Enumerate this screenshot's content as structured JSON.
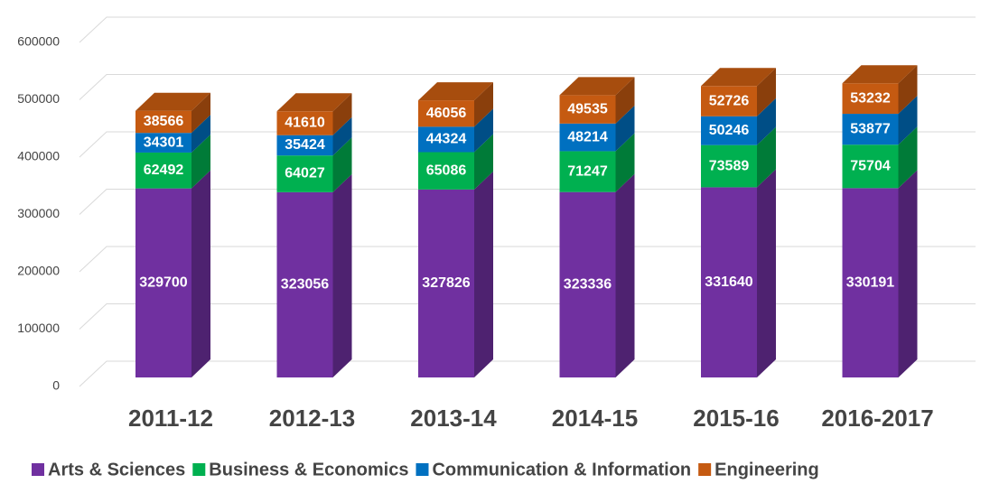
{
  "chart_data": {
    "type": "bar3d_stacked",
    "categories": [
      "2011-12",
      "2012-13",
      "2013-14",
      "2014-15",
      "2015-16",
      "2016-2017"
    ],
    "series": [
      {
        "name": "Arts & Sciences",
        "color": "#7030a0",
        "values": [
          329700,
          323056,
          327826,
          323336,
          331640,
          330191
        ]
      },
      {
        "name": "Business & Economics",
        "color": "#00b050",
        "values": [
          62492,
          64027,
          65086,
          71247,
          73589,
          75704
        ]
      },
      {
        "name": "Communication & Information",
        "color": "#0070c0",
        "values": [
          34301,
          35424,
          44324,
          48214,
          50246,
          53877
        ]
      },
      {
        "name": "Engineering",
        "color": "#c55a11",
        "values": [
          38566,
          41610,
          46056,
          49535,
          52726,
          53232
        ]
      }
    ],
    "ylim": [
      0,
      600000
    ],
    "yticks": [
      0,
      100000,
      200000,
      300000,
      400000,
      500000,
      600000
    ],
    "grid": true,
    "legend": "bottom"
  }
}
